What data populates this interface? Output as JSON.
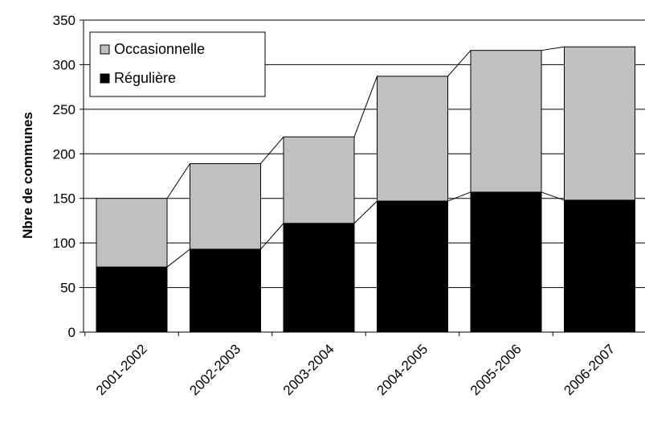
{
  "chart_data": {
    "type": "bar",
    "stacked": true,
    "categories": [
      "2001-2002",
      "2002-2003",
      "2003-2004",
      "2004-2005",
      "2005-2006",
      "2006-2007"
    ],
    "series": [
      {
        "name": "Régulière",
        "values": [
          73,
          93,
          122,
          147,
          157,
          148
        ],
        "color": "#000000"
      },
      {
        "name": "Occasionnelle",
        "values": [
          77,
          96,
          97,
          140,
          159,
          172
        ],
        "color": "#c0c0c0"
      }
    ],
    "legend_order": [
      "Occasionnelle",
      "Régulière"
    ],
    "title": "",
    "xlabel": "",
    "ylabel": "Nbre de communes",
    "ylim": [
      0,
      350
    ],
    "yticks": [
      0,
      50,
      100,
      150,
      200,
      250,
      300,
      350
    ],
    "grid": true,
    "legend_position": "top-left",
    "series_lines": true
  }
}
